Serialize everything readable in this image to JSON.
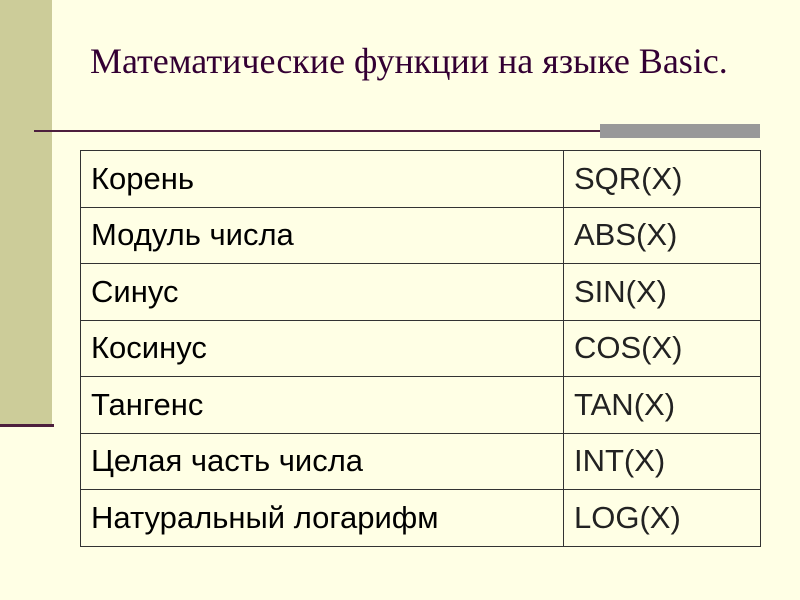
{
  "title": "Математические функции на языке Basic.",
  "table": {
    "rows": [
      [
        "Корень",
        "SQR(X)"
      ],
      [
        "Модуль числа",
        "ABS(X)"
      ],
      [
        "Синус",
        "SIN(X)"
      ],
      [
        "Косинус",
        "COS(X)"
      ],
      [
        "Тангенс",
        "TAN(X)"
      ],
      [
        "Целая часть числа",
        "INT(X)"
      ],
      [
        "Натуральный логарифм",
        "LOG(X)"
      ]
    ]
  }
}
